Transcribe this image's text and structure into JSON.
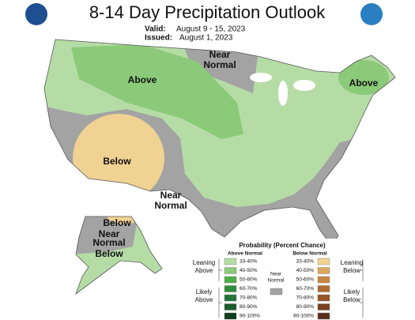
{
  "header": {
    "title": "8-14 Day Precipitation Outlook",
    "valid_label": "Valid:",
    "valid_value": "August 9 - 15, 2023",
    "issued_label": "Issued:",
    "issued_value": "August 1, 2023"
  },
  "map_labels": [
    {
      "lines": [
        "Above"
      ]
    },
    {
      "lines": [
        "Near",
        "Normal"
      ]
    },
    {
      "lines": [
        "Above"
      ]
    },
    {
      "lines": [
        "Below"
      ]
    },
    {
      "lines": [
        "Near",
        "Normal"
      ]
    },
    {
      "lines": [
        "Below"
      ]
    },
    {
      "lines": [
        "Near",
        "Normal"
      ]
    },
    {
      "lines": [
        "Below"
      ]
    }
  ],
  "legend": {
    "title": "Probability (Percent Chance)",
    "above_heading": "Above Normal",
    "below_heading": "Below Normal",
    "near_normal": {
      "lines": [
        "Near",
        "Normal"
      ],
      "color": "#a3a3a3"
    },
    "leaning_above": [
      "Leaning",
      "Above"
    ],
    "likely_above": [
      "Likely",
      "Above"
    ],
    "leaning_below": [
      "Leaning",
      "Below"
    ],
    "likely_below": [
      "Likely",
      "Below"
    ],
    "above_bins": [
      {
        "label": "33-40%",
        "color": "#b6dca6"
      },
      {
        "label": "40-50%",
        "color": "#8bca79"
      },
      {
        "label": "50-60%",
        "color": "#4fae48"
      },
      {
        "label": "60-70%",
        "color": "#2f8d3b"
      },
      {
        "label": "70-80%",
        "color": "#22763a"
      },
      {
        "label": "80-90%",
        "color": "#1a5c2b"
      },
      {
        "label": "90-100%",
        "color": "#0f3e1d"
      }
    ],
    "below_bins": [
      {
        "label": "33-40%",
        "color": "#f0d292"
      },
      {
        "label": "40-50%",
        "color": "#dca75d"
      },
      {
        "label": "50-60%",
        "color": "#c98642"
      },
      {
        "label": "60-70%",
        "color": "#b06b30"
      },
      {
        "label": "70-80%",
        "color": "#975628"
      },
      {
        "label": "80-90%",
        "color": "#7a4121"
      },
      {
        "label": "90-100%",
        "color": "#5b2e1c"
      }
    ]
  }
}
